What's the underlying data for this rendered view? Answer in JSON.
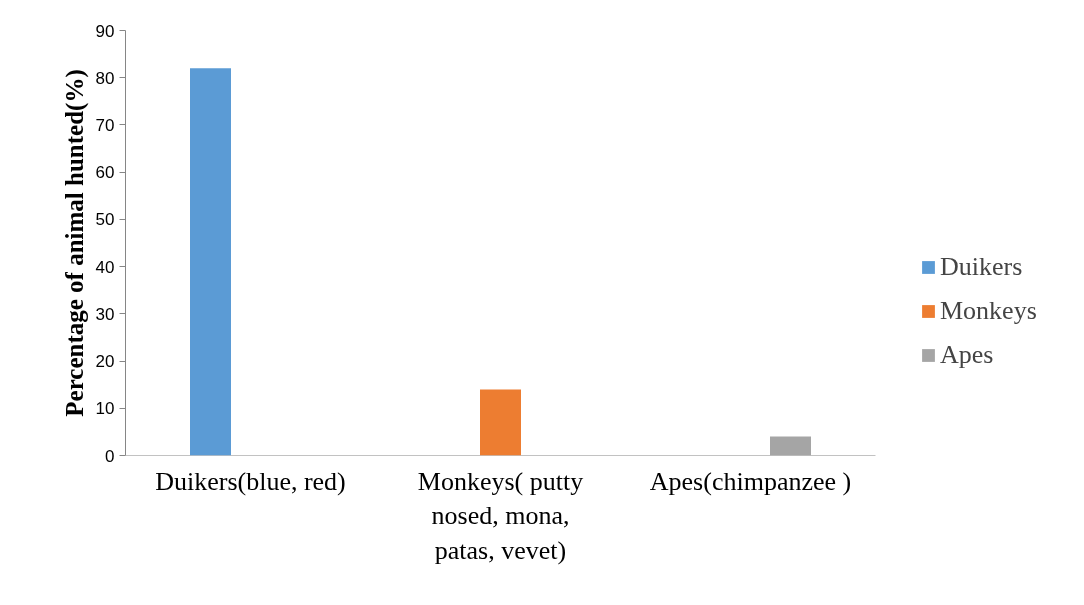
{
  "chart_data": {
    "type": "bar",
    "ylabel": "Percentage of animal hunted(%)",
    "categories": [
      "Duikers(blue, red)",
      "Monkeys( putty nosed, mona, patas, vevet)",
      "Apes(chimpanzee )"
    ],
    "series": [
      {
        "name": "Duikers",
        "color": "#5b9bd5",
        "values": [
          82,
          null,
          null
        ]
      },
      {
        "name": "Monkeys",
        "color": "#ed7d31",
        "values": [
          null,
          14,
          null
        ]
      },
      {
        "name": "Apes",
        "color": "#a5a5a5",
        "values": [
          null,
          null,
          4
        ]
      }
    ],
    "ylim": [
      0,
      90
    ],
    "yticks": [
      0,
      10,
      20,
      30,
      40,
      50,
      60,
      70,
      80,
      90
    ],
    "grid": false,
    "legend": "right"
  }
}
